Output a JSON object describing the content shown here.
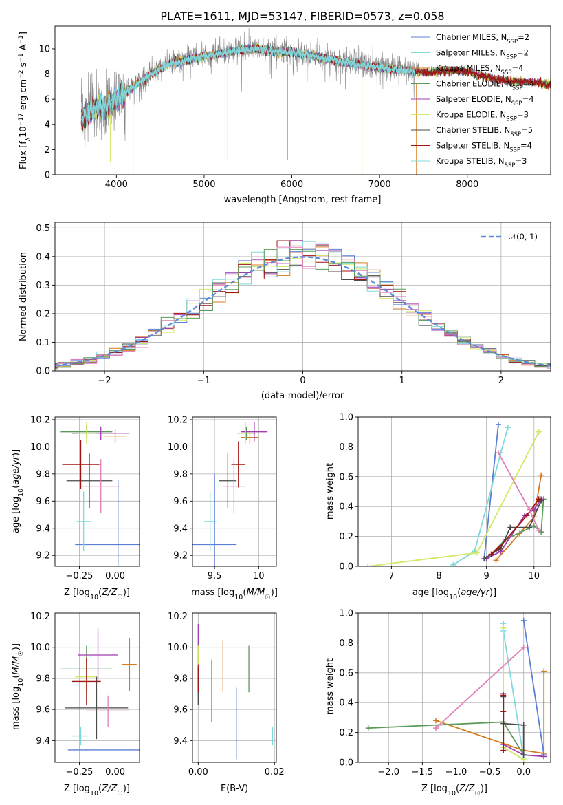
{
  "colors": {
    "chabrier_miles": "#5b7fd6",
    "salpeter_miles": "#7fd8dc",
    "kroupa_miles": "#d67a1e",
    "chabrier_elodie": "#5a9a5a",
    "salpeter_elodie": "#a03cb0",
    "kroupa_elodie": "#d2e864",
    "chabrier_stelib": "#4a4a4a",
    "salpeter_stelib": "#a01414",
    "kroupa_stelib": "#7fd8dc",
    "data_gray": "#888888",
    "pink": "#e07fb8",
    "gauss": "#5b8ad6"
  },
  "chart_data": [
    {
      "type": "line",
      "title": "PLATE=1611, MJD=53147, FIBERID=0573, z=0.058",
      "xlabel": "wavelength [Angstrom, rest frame]",
      "ylabel_parts": [
        "Flux [f",
        "λ",
        "10",
        "−17",
        " erg cm",
        "−2",
        " s",
        "−1",
        " A",
        "−1",
        "]"
      ],
      "xlim": [
        3300,
        8950
      ],
      "ylim": [
        0,
        11.8
      ],
      "xticks": [
        4000,
        5000,
        6000,
        7000,
        8000
      ],
      "yticks": [
        0,
        2,
        4,
        6,
        8,
        10
      ],
      "continuum": {
        "x": [
          3600,
          3700,
          3800,
          3900,
          4000,
          4100,
          4200,
          4400,
          4600,
          4800,
          5000,
          5200,
          5400,
          5600,
          5800,
          6000,
          6200,
          6400,
          6600,
          6800,
          7000,
          7200,
          7400,
          7600,
          7800,
          8000,
          8200,
          8400,
          8600,
          8800,
          8950
        ],
        "y": [
          4.4,
          5.2,
          5.5,
          5.6,
          6.1,
          6.6,
          7.1,
          8.1,
          8.9,
          9.2,
          9.5,
          9.7,
          10.0,
          10.1,
          9.9,
          9.8,
          9.6,
          9.3,
          9.0,
          8.8,
          8.6,
          8.4,
          8.3,
          8.2,
          8.4,
          8.3,
          7.9,
          7.6,
          7.5,
          7.4,
          7.2
        ]
      },
      "legend": [
        {
          "name": "Chabrier MILES, N",
          "sub": "SSP",
          "suffix": "=2",
          "color": "chabrier_miles"
        },
        {
          "name": "Salpeter MILES, N",
          "sub": "SSP",
          "suffix": "=2",
          "color": "salpeter_miles"
        },
        {
          "name": "Kroupa MILES, N",
          "sub": "SSP",
          "suffix": "=4",
          "color": "kroupa_miles"
        },
        {
          "name": "Chabrier ELODIE, N",
          "sub": "SSP",
          "suffix": "=4",
          "color": "chabrier_elodie"
        },
        {
          "name": "Salpeter ELODIE, N",
          "sub": "SSP",
          "suffix": "=4",
          "color": "salpeter_elodie"
        },
        {
          "name": "Kroupa ELODIE, N",
          "sub": "SSP",
          "suffix": "=3",
          "color": "kroupa_elodie"
        },
        {
          "name": "Chabrier STELIB, N",
          "sub": "SSP",
          "suffix": "=5",
          "color": "chabrier_stelib"
        },
        {
          "name": "Salpeter STELIB, N",
          "sub": "SSP",
          "suffix": "=4",
          "color": "salpeter_stelib"
        },
        {
          "name": "Kroupa STELIB, N",
          "sub": "SSP",
          "suffix": "=3",
          "color": "kroupa_stelib"
        }
      ]
    },
    {
      "type": "histogram",
      "xlabel": "(data-model)/error",
      "ylabel": "Normed distribution",
      "xlim": [
        -2.5,
        2.5
      ],
      "ylim": [
        0,
        0.52
      ],
      "xticks": [
        -2,
        -1,
        0,
        1,
        2
      ],
      "xtick_labels": [
        "−2",
        "−1",
        "0",
        "1",
        "2"
      ],
      "yticks": [
        0.0,
        0.1,
        0.2,
        0.3,
        0.4,
        0.5
      ],
      "ytick_labels": [
        "0.0",
        "0.1",
        "0.2",
        "0.3",
        "0.4",
        "0.5"
      ],
      "legend": {
        "text": "𝒩(0, 1)",
        "color": "gauss"
      },
      "series_colors": [
        "chabrier_miles",
        "kroupa_miles",
        "salpeter_elodie",
        "kroupa_elodie",
        "chabrier_stelib",
        "salpeter_stelib",
        "salpeter_miles",
        "pink",
        "chabrier_elodie"
      ]
    },
    {
      "type": "scatter",
      "xlabel": "Z [log10(Z/Z☉)]",
      "ylabel": "age  [log10(age/yr)]",
      "xlim": [
        -0.42,
        0.17
      ],
      "ylim": [
        9.12,
        10.22
      ],
      "xticks": [
        -0.25,
        0.0
      ],
      "xtick_labels": [
        "−0.25",
        "0.00"
      ],
      "yticks": [
        9.2,
        9.4,
        9.6,
        9.8,
        10.0,
        10.2
      ],
      "points": [
        {
          "x": 0.02,
          "y": 9.28,
          "xerr": 0.3,
          "yerr": 0.48,
          "color": "chabrier_miles"
        },
        {
          "x": -0.22,
          "y": 9.45,
          "xerr": 0.05,
          "yerr": 0.22,
          "color": "salpeter_miles"
        },
        {
          "x": 0.0,
          "y": 10.08,
          "xerr": 0.08,
          "yerr": 0.05,
          "color": "kroupa_miles"
        },
        {
          "x": -0.2,
          "y": 10.11,
          "xerr": 0.18,
          "yerr": 0.05,
          "color": "chabrier_elodie"
        },
        {
          "x": -0.1,
          "y": 10.1,
          "xerr": 0.2,
          "yerr": 0.05,
          "color": "salpeter_elodie"
        },
        {
          "x": -0.2,
          "y": 10.1,
          "xerr": 0.06,
          "yerr": 0.08,
          "color": "kroupa_elodie"
        },
        {
          "x": -0.18,
          "y": 9.75,
          "xerr": 0.16,
          "yerr": 0.2,
          "color": "chabrier_stelib"
        },
        {
          "x": -0.24,
          "y": 9.87,
          "xerr": 0.13,
          "yerr": 0.18,
          "color": "salpeter_stelib"
        },
        {
          "x": -0.1,
          "y": 9.71,
          "xerr": 0.13,
          "yerr": 0.2,
          "color": "pink"
        }
      ]
    },
    {
      "type": "scatter",
      "xlabel": "mass [log10(M/M☉)]",
      "xlim": [
        9.25,
        10.2
      ],
      "ylim": [
        9.12,
        10.22
      ],
      "xticks": [
        9.5,
        10.0
      ],
      "yticks": [
        9.2,
        9.4,
        9.6,
        9.8,
        10.0,
        10.2
      ],
      "points": [
        {
          "x": 9.5,
          "y": 9.28,
          "xerr": 0.25,
          "yerr": 0.52,
          "color": "chabrier_miles"
        },
        {
          "x": 9.45,
          "y": 9.45,
          "xerr": 0.07,
          "yerr": 0.22,
          "color": "salpeter_miles"
        },
        {
          "x": 9.9,
          "y": 10.07,
          "xerr": 0.1,
          "yerr": 0.05,
          "color": "kroupa_miles"
        },
        {
          "x": 9.86,
          "y": 10.1,
          "xerr": 0.1,
          "yerr": 0.05,
          "color": "chabrier_elodie"
        },
        {
          "x": 9.95,
          "y": 10.11,
          "xerr": 0.15,
          "yerr": 0.07,
          "color": "salpeter_elodie"
        },
        {
          "x": 9.85,
          "y": 10.1,
          "xerr": 0.08,
          "yerr": 0.08,
          "color": "kroupa_elodie"
        },
        {
          "x": 9.65,
          "y": 9.75,
          "xerr": 0.1,
          "yerr": 0.2,
          "color": "chabrier_stelib"
        },
        {
          "x": 9.77,
          "y": 9.87,
          "xerr": 0.08,
          "yerr": 0.17,
          "color": "salpeter_stelib"
        },
        {
          "x": 9.72,
          "y": 9.71,
          "xerr": 0.13,
          "yerr": 0.2,
          "color": "pink"
        }
      ]
    },
    {
      "type": "line",
      "xlabel": "age  [log10(age/yr)]",
      "ylabel": "mass weight",
      "xlim": [
        6.3,
        10.35
      ],
      "ylim": [
        0,
        1.0
      ],
      "xticks": [
        7,
        8,
        9,
        10
      ],
      "yticks": [
        0.0,
        0.2,
        0.4,
        0.6,
        0.8,
        1.0
      ],
      "series": [
        {
          "color": "chabrier_miles",
          "x": [
            8.95,
            9.25
          ],
          "y": [
            0.05,
            0.95
          ]
        },
        {
          "color": "salpeter_miles",
          "x": [
            8.3,
            8.75,
            9.3,
            9.45
          ],
          "y": [
            0.01,
            0.1,
            0.76,
            0.93
          ]
        },
        {
          "color": "kroupa_miles",
          "x": [
            9.2,
            9.7,
            10.0,
            10.15
          ],
          "y": [
            0.04,
            0.22,
            0.33,
            0.61
          ]
        },
        {
          "color": "chabrier_elodie",
          "x": [
            9.0,
            9.4,
            10.0,
            10.15,
            10.2
          ],
          "y": [
            0.05,
            0.18,
            0.27,
            0.23,
            0.45
          ]
        },
        {
          "color": "salpeter_elodie",
          "x": [
            9.0,
            9.3,
            9.8,
            10.0,
            10.15
          ],
          "y": [
            0.05,
            0.1,
            0.34,
            0.38,
            0.45
          ]
        },
        {
          "color": "kroupa_elodie",
          "x": [
            6.5,
            8.8,
            10.1
          ],
          "y": [
            0.0,
            0.09,
            0.9
          ]
        },
        {
          "color": "chabrier_stelib",
          "x": [
            8.95,
            9.3,
            9.5,
            9.9,
            10.15
          ],
          "y": [
            0.05,
            0.12,
            0.26,
            0.26,
            0.44
          ]
        },
        {
          "color": "salpeter_stelib",
          "x": [
            9.1,
            9.25,
            9.85,
            10.1
          ],
          "y": [
            0.08,
            0.12,
            0.34,
            0.45
          ]
        },
        {
          "color": "pink",
          "x": [
            9.25,
            9.9,
            10.1
          ],
          "y": [
            0.76,
            0.38,
            0.24
          ]
        }
      ]
    },
    {
      "type": "scatter",
      "xlabel": "Z [log10(Z/Z☉)]",
      "ylabel": "mass [log10(M/M☉)]",
      "xlim": [
        -0.42,
        0.17
      ],
      "ylim": [
        9.26,
        10.22
      ],
      "xticks": [
        -0.25,
        0.0
      ],
      "xtick_labels": [
        "−0.25",
        "0.00"
      ],
      "yticks": [
        9.4,
        9.6,
        9.8,
        10.0,
        10.2
      ],
      "points": [
        {
          "x": -0.03,
          "y": 9.34,
          "xerr": 0.3,
          "yerr": 0.0,
          "color": "chabrier_miles"
        },
        {
          "x": -0.24,
          "y": 9.43,
          "xerr": 0.06,
          "yerr": 0.06,
          "color": "salpeter_miles"
        },
        {
          "x": 0.1,
          "y": 9.89,
          "xerr": 0.05,
          "yerr": 0.17,
          "color": "kroupa_miles"
        },
        {
          "x": -0.2,
          "y": 9.86,
          "xerr": 0.18,
          "yerr": 0.15,
          "color": "chabrier_elodie"
        },
        {
          "x": -0.12,
          "y": 9.95,
          "xerr": 0.14,
          "yerr": 0.17,
          "color": "salpeter_elodie"
        },
        {
          "x": -0.2,
          "y": 9.81,
          "xerr": 0.08,
          "yerr": 0.1,
          "color": "kroupa_elodie"
        },
        {
          "x": -0.13,
          "y": 9.61,
          "xerr": 0.22,
          "yerr": 0.2,
          "color": "chabrier_stelib"
        },
        {
          "x": -0.2,
          "y": 9.78,
          "xerr": 0.1,
          "yerr": 0.15,
          "color": "salpeter_stelib"
        },
        {
          "x": -0.05,
          "y": 9.59,
          "xerr": 0.15,
          "yerr": 0.1,
          "color": "pink"
        }
      ]
    },
    {
      "type": "scatter",
      "xlabel": "E(B-V)",
      "xlim": [
        -0.0015,
        0.0205
      ],
      "ylim": [
        9.26,
        10.22
      ],
      "xticks": [
        0.0,
        0.02
      ],
      "xtick_labels": [
        "0.00",
        "0.02"
      ],
      "yticks": [
        9.4,
        9.6,
        9.8,
        10.0,
        10.2
      ],
      "points": [
        {
          "x": 0.0,
          "y": 9.75,
          "xerr": 0.0,
          "yerr": 0.12,
          "color": "chabrier_stelib"
        },
        {
          "x": 0.0,
          "y": 9.83,
          "xerr": 0.0,
          "yerr": 0.12,
          "color": "salpeter_stelib"
        },
        {
          "x": 0.0,
          "y": 10.05,
          "xerr": 0.0,
          "yerr": 0.1,
          "color": "salpeter_elodie"
        },
        {
          "x": 0.0,
          "y": 9.95,
          "xerr": 0.0,
          "yerr": 0.06,
          "color": "kroupa_elodie"
        },
        {
          "x": 0.0035,
          "y": 9.72,
          "xerr": 0.0,
          "yerr": 0.2,
          "color": "pink"
        },
        {
          "x": 0.0065,
          "y": 9.88,
          "xerr": 0.0,
          "yerr": 0.17,
          "color": "kroupa_miles"
        },
        {
          "x": 0.01,
          "y": 9.51,
          "xerr": 0.0,
          "yerr": 0.23,
          "color": "chabrier_miles"
        },
        {
          "x": 0.0133,
          "y": 9.86,
          "xerr": 0.0,
          "yerr": 0.15,
          "color": "chabrier_elodie"
        },
        {
          "x": 0.0195,
          "y": 9.43,
          "xerr": 0.0,
          "yerr": 0.06,
          "color": "salpeter_miles"
        }
      ]
    },
    {
      "type": "line",
      "xlabel": "Z [log10(Z/Z☉)]",
      "ylabel": "mass weight",
      "xlim": [
        -2.45,
        0.4
      ],
      "ylim": [
        0,
        1.0
      ],
      "xticks": [
        -2.0,
        -1.5,
        -1.0,
        -0.5,
        0.0
      ],
      "xtick_labels": [
        "−2.0",
        "−1.5",
        "−1.0",
        "−0.5",
        "0.0"
      ],
      "yticks": [
        0.0,
        0.2,
        0.4,
        0.6,
        0.8,
        1.0
      ],
      "series": [
        {
          "color": "chabrier_miles",
          "x": [
            0.0,
            0.3,
            0.3
          ],
          "y": [
            0.95,
            0.05,
            0.04
          ]
        },
        {
          "color": "salpeter_miles",
          "x": [
            -0.3,
            -0.3,
            0.0
          ],
          "y": [
            0.93,
            0.88,
            0.03
          ]
        },
        {
          "color": "kroupa_miles",
          "x": [
            -1.3,
            0.0,
            0.3,
            0.3
          ],
          "y": [
            0.28,
            0.08,
            0.06,
            0.61
          ]
        },
        {
          "color": "chabrier_elodie",
          "x": [
            -2.3,
            -0.3,
            0.0
          ],
          "y": [
            0.23,
            0.27,
            0.05
          ]
        },
        {
          "color": "salpeter_elodie",
          "x": [
            -0.3,
            -0.3,
            0.0,
            0.3
          ],
          "y": [
            0.46,
            0.12,
            0.05,
            0.04
          ]
        },
        {
          "color": "kroupa_elodie",
          "x": [
            -0.3,
            -0.3,
            0.0
          ],
          "y": [
            0.9,
            0.1,
            0.02
          ]
        },
        {
          "color": "chabrier_stelib",
          "x": [
            -0.3,
            -0.3,
            0.0,
            0.0
          ],
          "y": [
            0.44,
            0.26,
            0.25,
            0.05
          ]
        },
        {
          "color": "salpeter_stelib",
          "x": [
            -0.3,
            -0.3,
            -0.3
          ],
          "y": [
            0.45,
            0.34,
            0.08
          ]
        },
        {
          "color": "pink",
          "x": [
            -1.3,
            0.0
          ],
          "y": [
            0.23,
            0.77
          ]
        }
      ]
    }
  ]
}
